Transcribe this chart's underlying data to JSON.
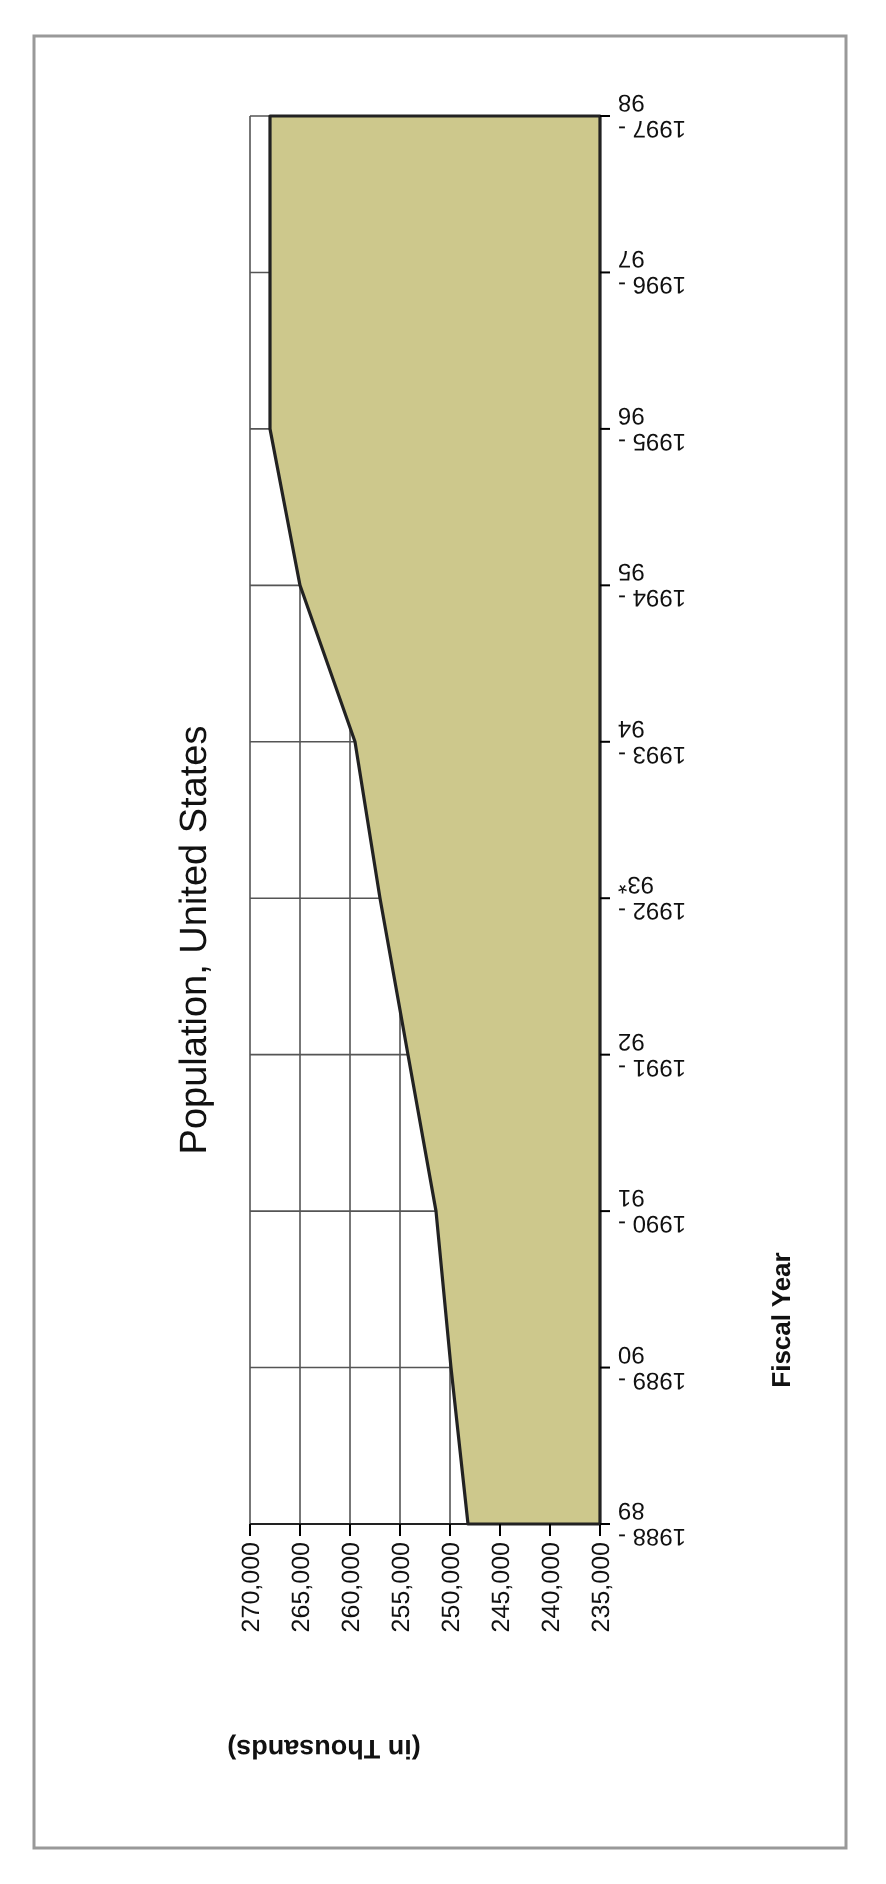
{
  "chart_data": {
    "type": "area",
    "orientation": "horizontal",
    "title": "Population, United States",
    "xlabel": "(in Thousands)",
    "ylabel": "Fiscal Year",
    "categories": [
      "1997 - 98",
      "1996 - 97",
      "1995 - 96",
      "1994 - 95",
      "1993 - 94",
      "1992 - 93*",
      "1991 - 92",
      "1990 - 91",
      "1989 - 90",
      "1988 - 89"
    ],
    "values": [
      268000,
      268000,
      268000,
      265000,
      259500,
      257000,
      254200,
      251400,
      249900,
      248200
    ],
    "color": "#cdc88c",
    "xlim": [
      270000,
      235000
    ],
    "xticks": [
      {
        "value": 270000,
        "label": "270,000"
      },
      {
        "value": 265000,
        "label": "265,000"
      },
      {
        "value": 260000,
        "label": "260,000"
      },
      {
        "value": 255000,
        "label": "255,000"
      },
      {
        "value": 250000,
        "label": "250,000"
      },
      {
        "value": 245000,
        "label": "245,000"
      },
      {
        "value": 240000,
        "label": "240,000"
      },
      {
        "value": 235000,
        "label": "235,000"
      }
    ],
    "grid": true
  }
}
